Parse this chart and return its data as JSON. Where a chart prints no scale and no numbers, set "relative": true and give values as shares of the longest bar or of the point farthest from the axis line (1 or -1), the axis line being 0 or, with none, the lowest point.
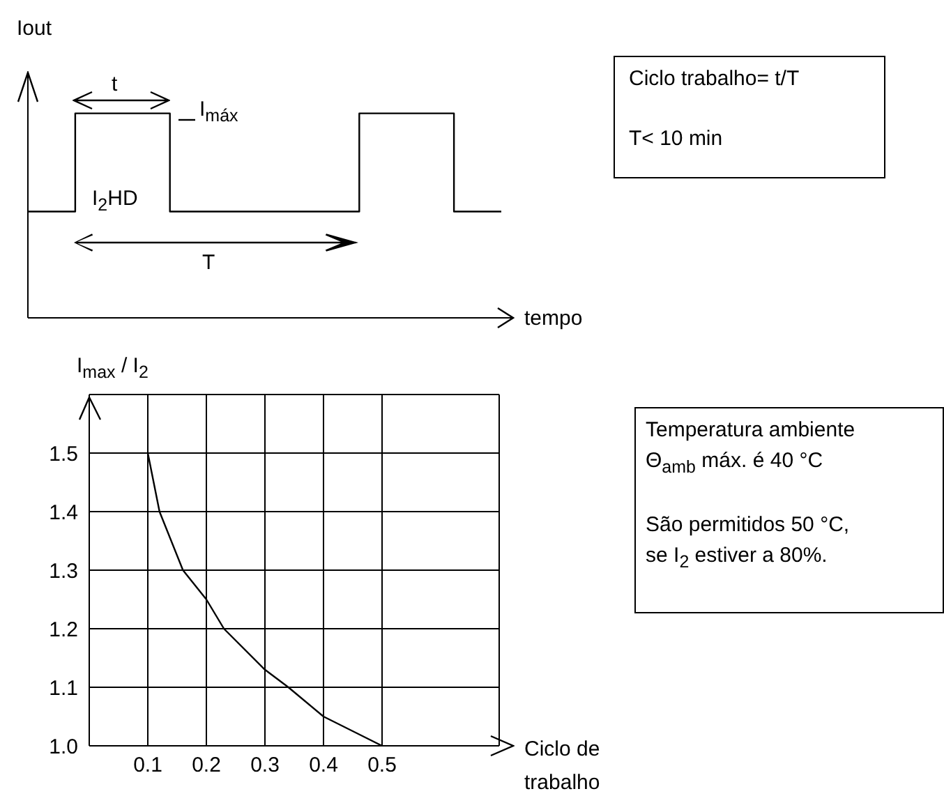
{
  "chart_data": [
    {
      "type": "step",
      "relative": true,
      "ylabel": "Iout",
      "xlabel": "tempo",
      "categories": [
        null,
        null,
        null,
        null,
        null,
        null,
        null,
        null,
        null,
        null,
        null
      ],
      "series": [
        {
          "color": "#000000",
          "values": [
            0.52,
            1,
            1,
            0.52,
            0.52,
            0.52,
            0.52,
            1,
            1,
            0.52,
            0.52
          ]
        }
      ],
      "annotations": [
        "t",
        "I$_{máx}$",
        "I$_{2}$HD",
        "T",
        "Ciclo trabalho= t/T",
        "T< 10 min"
      ]
    },
    {
      "type": "line",
      "ylabel": "I$_{max}$ / I$_{2}$",
      "xlabel": "Ciclo de trabalho",
      "x": [
        0.1,
        0.12,
        0.16,
        0.2,
        0.23,
        0.3,
        0.34,
        0.4,
        0.5
      ],
      "series": [
        {
          "color": "#000000",
          "values": [
            1.5,
            1.4,
            1.3,
            1.25,
            1.2,
            1.13,
            1.1,
            1.05,
            1.0
          ]
        }
      ],
      "xlim": [
        0,
        0.7
      ],
      "xticks": [
        0.1,
        0.2,
        0.3,
        0.4,
        0.5
      ],
      "ylim": [
        1.0,
        1.6
      ],
      "yticks": [
        {
          "value": 1.0,
          "label": "1.0"
        },
        1.1,
        1.2,
        1.3,
        1.4,
        1.5
      ],
      "grid": true,
      "annotations": [
        "Temperatura ambiente",
        "Θ$_{amb}$ máx. é 40 °C",
        "São permitidos 50 °C,",
        "se I$_{2}$ estiver a 80%."
      ]
    }
  ]
}
